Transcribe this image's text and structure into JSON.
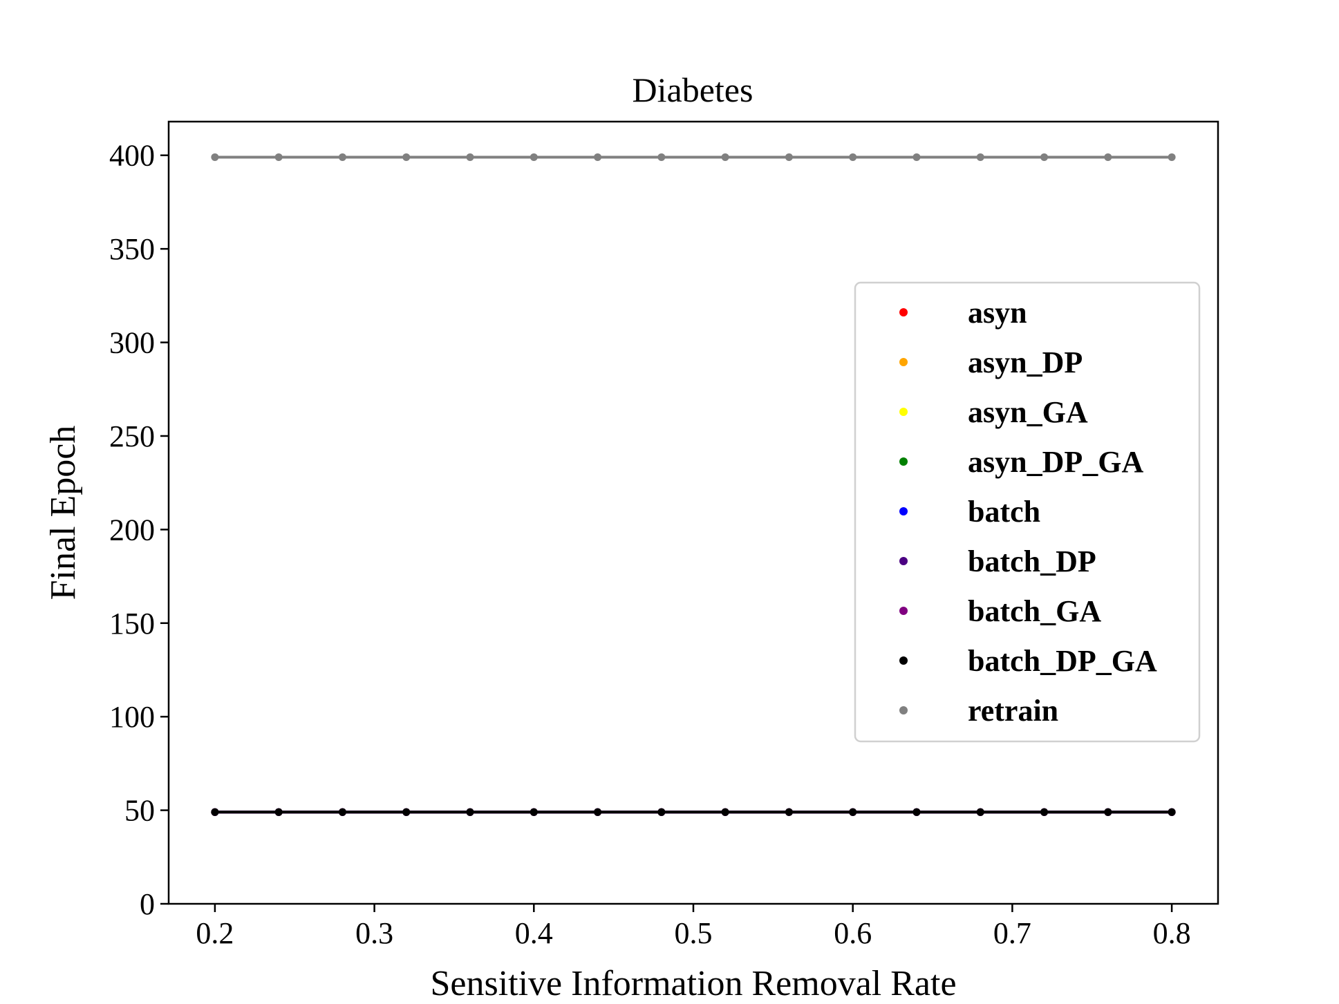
{
  "chart_data": {
    "type": "line",
    "title": "Diabetes",
    "xlabel": "Sensitive Information Removal Rate",
    "ylabel": "Final Epoch",
    "xlim": [
      0.171,
      0.829
    ],
    "ylim": [
      0,
      418
    ],
    "x": [
      0.2,
      0.24,
      0.28,
      0.32,
      0.36,
      0.4,
      0.44,
      0.48,
      0.52,
      0.56,
      0.6,
      0.64,
      0.68,
      0.72,
      0.76,
      0.8
    ],
    "x_ticks": [
      0.2,
      0.3,
      0.4,
      0.5,
      0.6,
      0.7,
      0.8
    ],
    "x_tick_labels": [
      "0.2",
      "0.3",
      "0.4",
      "0.5",
      "0.6",
      "0.7",
      "0.8"
    ],
    "y_ticks": [
      0,
      50,
      100,
      150,
      200,
      250,
      300,
      350,
      400
    ],
    "y_tick_labels": [
      "0",
      "50",
      "100",
      "150",
      "200",
      "250",
      "300",
      "350",
      "400"
    ],
    "grid": false,
    "legend_position": "center-right",
    "series": [
      {
        "name": "asyn",
        "color": "#ff0000",
        "values": [
          49,
          49,
          49,
          49,
          49,
          49,
          49,
          49,
          49,
          49,
          49,
          49,
          49,
          49,
          49,
          49
        ]
      },
      {
        "name": "asyn_DP",
        "color": "#ffa500",
        "values": [
          49,
          49,
          49,
          49,
          49,
          49,
          49,
          49,
          49,
          49,
          49,
          49,
          49,
          49,
          49,
          49
        ]
      },
      {
        "name": "asyn_GA",
        "color": "#ffff00",
        "values": [
          49,
          49,
          49,
          49,
          49,
          49,
          49,
          49,
          49,
          49,
          49,
          49,
          49,
          49,
          49,
          49
        ]
      },
      {
        "name": "asyn_DP_GA",
        "color": "#008000",
        "values": [
          49,
          49,
          49,
          49,
          49,
          49,
          49,
          49,
          49,
          49,
          49,
          49,
          49,
          49,
          49,
          49
        ]
      },
      {
        "name": "batch",
        "color": "#0000ff",
        "values": [
          49,
          49,
          49,
          49,
          49,
          49,
          49,
          49,
          49,
          49,
          49,
          49,
          49,
          49,
          49,
          49
        ]
      },
      {
        "name": "batch_DP",
        "color": "#4b0082",
        "values": [
          49,
          49,
          49,
          49,
          49,
          49,
          49,
          49,
          49,
          49,
          49,
          49,
          49,
          49,
          49,
          49
        ]
      },
      {
        "name": "batch_GA",
        "color": "#800080",
        "values": [
          49,
          49,
          49,
          49,
          49,
          49,
          49,
          49,
          49,
          49,
          49,
          49,
          49,
          49,
          49,
          49
        ]
      },
      {
        "name": "batch_DP_GA",
        "color": "#000000",
        "values": [
          49,
          49,
          49,
          49,
          49,
          49,
          49,
          49,
          49,
          49,
          49,
          49,
          49,
          49,
          49,
          49
        ]
      },
      {
        "name": "retrain",
        "color": "#808080",
        "values": [
          399,
          399,
          399,
          399,
          399,
          399,
          399,
          399,
          399,
          399,
          399,
          399,
          399,
          399,
          399,
          399
        ]
      }
    ]
  }
}
